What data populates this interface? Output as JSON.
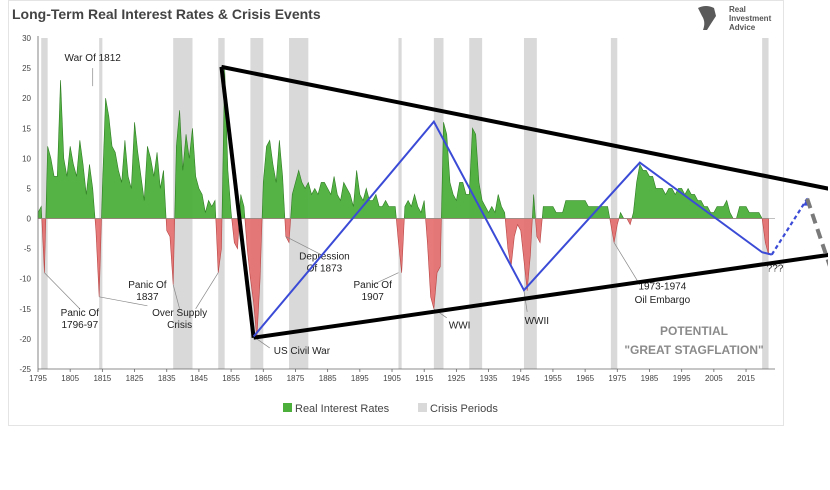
{
  "logo": {
    "line1": "Real",
    "line2": "Investment",
    "line3": "Advice"
  },
  "chart_data": {
    "type": "area",
    "title": "Long-Term Real Interest Rates & Crisis Events",
    "xlabel": "",
    "ylabel": "",
    "xlim": [
      1795,
      2024
    ],
    "ylim": [
      -25,
      30
    ],
    "grid": false,
    "legend_position": "bottom-center",
    "x_ticks": [
      "1795",
      "1805",
      "1815",
      "1825",
      "1835",
      "1845",
      "1855",
      "1865",
      "1875",
      "1885",
      "1895",
      "1905",
      "1915",
      "1925",
      "1935",
      "1945",
      "1955",
      "1965",
      "1975",
      "1985",
      "1995",
      "2005",
      "2015"
    ],
    "y_ticks": [
      "30",
      "25",
      "20",
      "15",
      "10",
      "5",
      "0",
      "-5",
      "-10",
      "-15",
      "-20",
      "-25"
    ],
    "series": [
      {
        "name": "Real Interest Rates",
        "positive_color": "#4caf3c",
        "negative_color": "#e36a6a",
        "points": [
          [
            1795,
            1
          ],
          [
            1796,
            2
          ],
          [
            1797,
            -9
          ],
          [
            1798,
            12
          ],
          [
            1799,
            10
          ],
          [
            1800,
            7
          ],
          [
            1801,
            7
          ],
          [
            1802,
            23
          ],
          [
            1803,
            10
          ],
          [
            1804,
            7
          ],
          [
            1805,
            12
          ],
          [
            1806,
            9
          ],
          [
            1807,
            7
          ],
          [
            1808,
            13
          ],
          [
            1809,
            9
          ],
          [
            1810,
            4
          ],
          [
            1811,
            9
          ],
          [
            1812,
            5
          ],
          [
            1813,
            -2
          ],
          [
            1814,
            -13
          ],
          [
            1815,
            5
          ],
          [
            1816,
            20
          ],
          [
            1817,
            17
          ],
          [
            1818,
            12
          ],
          [
            1819,
            11
          ],
          [
            1820,
            8
          ],
          [
            1821,
            6
          ],
          [
            1822,
            13
          ],
          [
            1823,
            7
          ],
          [
            1824,
            5
          ],
          [
            1825,
            16
          ],
          [
            1826,
            11
          ],
          [
            1827,
            7
          ],
          [
            1828,
            3
          ],
          [
            1829,
            12
          ],
          [
            1830,
            10
          ],
          [
            1831,
            7
          ],
          [
            1832,
            11
          ],
          [
            1833,
            5
          ],
          [
            1834,
            8
          ],
          [
            1835,
            -2
          ],
          [
            1836,
            -3
          ],
          [
            1837,
            -11
          ],
          [
            1838,
            12
          ],
          [
            1839,
            18
          ],
          [
            1840,
            8
          ],
          [
            1841,
            14
          ],
          [
            1842,
            10
          ],
          [
            1843,
            15
          ],
          [
            1844,
            7
          ],
          [
            1845,
            5
          ],
          [
            1846,
            4
          ],
          [
            1847,
            1
          ],
          [
            1848,
            3
          ],
          [
            1849,
            2
          ],
          [
            1850,
            3
          ],
          [
            1851,
            -9
          ],
          [
            1852,
            -5
          ],
          [
            1853,
            25
          ],
          [
            1854,
            8
          ],
          [
            1855,
            1
          ],
          [
            1856,
            -4
          ],
          [
            1857,
            -5
          ],
          [
            1858,
            4
          ],
          [
            1859,
            2
          ],
          [
            1860,
            -5
          ],
          [
            1861,
            -10
          ],
          [
            1862,
            -14
          ],
          [
            1863,
            -20
          ],
          [
            1864,
            -10
          ],
          [
            1865,
            6
          ],
          [
            1866,
            12
          ],
          [
            1867,
            13
          ],
          [
            1868,
            9
          ],
          [
            1869,
            6
          ],
          [
            1870,
            13
          ],
          [
            1871,
            7
          ],
          [
            1872,
            -3
          ],
          [
            1873,
            -4
          ],
          [
            1874,
            4
          ],
          [
            1875,
            6
          ],
          [
            1876,
            8
          ],
          [
            1877,
            6
          ],
          [
            1878,
            5
          ],
          [
            1879,
            6
          ],
          [
            1880,
            4
          ],
          [
            1881,
            5
          ],
          [
            1882,
            4
          ],
          [
            1883,
            6
          ],
          [
            1884,
            6
          ],
          [
            1885,
            5
          ],
          [
            1886,
            4
          ],
          [
            1887,
            7
          ],
          [
            1888,
            4
          ],
          [
            1889,
            3
          ],
          [
            1890,
            6
          ],
          [
            1891,
            5
          ],
          [
            1892,
            4
          ],
          [
            1893,
            2
          ],
          [
            1894,
            8
          ],
          [
            1895,
            4
          ],
          [
            1896,
            3
          ],
          [
            1897,
            5
          ],
          [
            1898,
            3
          ],
          [
            1899,
            3
          ],
          [
            1900,
            4
          ],
          [
            1901,
            2
          ],
          [
            1902,
            2
          ],
          [
            1903,
            3
          ],
          [
            1904,
            2
          ],
          [
            1905,
            2
          ],
          [
            1906,
            2
          ],
          [
            1907,
            -4
          ],
          [
            1908,
            -9
          ],
          [
            1909,
            2
          ],
          [
            1910,
            3
          ],
          [
            1911,
            2
          ],
          [
            1912,
            4
          ],
          [
            1913,
            2
          ],
          [
            1914,
            1
          ],
          [
            1915,
            3
          ],
          [
            1916,
            -4
          ],
          [
            1917,
            -13
          ],
          [
            1918,
            -15
          ],
          [
            1919,
            -9
          ],
          [
            1920,
            -8
          ],
          [
            1921,
            16
          ],
          [
            1922,
            14
          ],
          [
            1923,
            6
          ],
          [
            1924,
            4
          ],
          [
            1925,
            3
          ],
          [
            1926,
            6
          ],
          [
            1927,
            6
          ],
          [
            1928,
            4
          ],
          [
            1929,
            4
          ],
          [
            1930,
            15
          ],
          [
            1931,
            14
          ],
          [
            1932,
            6
          ],
          [
            1933,
            3
          ],
          [
            1934,
            2
          ],
          [
            1935,
            1
          ],
          [
            1936,
            2
          ],
          [
            1937,
            1
          ],
          [
            1938,
            4
          ],
          [
            1939,
            2
          ],
          [
            1940,
            1
          ],
          [
            1941,
            -5
          ],
          [
            1942,
            -8
          ],
          [
            1943,
            -3
          ],
          [
            1944,
            -1
          ],
          [
            1945,
            -2
          ],
          [
            1946,
            -7
          ],
          [
            1947,
            -12
          ],
          [
            1948,
            -6
          ],
          [
            1949,
            4
          ],
          [
            1950,
            -3
          ],
          [
            1951,
            -4
          ],
          [
            1952,
            2
          ],
          [
            1953,
            2
          ],
          [
            1954,
            2
          ],
          [
            1955,
            2
          ],
          [
            1956,
            1
          ],
          [
            1957,
            1
          ],
          [
            1958,
            1
          ],
          [
            1959,
            3
          ],
          [
            1960,
            3
          ],
          [
            1961,
            3
          ],
          [
            1962,
            3
          ],
          [
            1963,
            3
          ],
          [
            1964,
            3
          ],
          [
            1965,
            3
          ],
          [
            1966,
            2
          ],
          [
            1967,
            2
          ],
          [
            1968,
            2
          ],
          [
            1969,
            2
          ],
          [
            1970,
            2
          ],
          [
            1971,
            2
          ],
          [
            1972,
            2
          ],
          [
            1973,
            -1
          ],
          [
            1974,
            -4
          ],
          [
            1975,
            -1
          ],
          [
            1976,
            1
          ],
          [
            1977,
            0
          ],
          [
            1978,
            0
          ],
          [
            1979,
            -1
          ],
          [
            1980,
            1
          ],
          [
            1981,
            6
          ],
          [
            1982,
            9
          ],
          [
            1983,
            8
          ],
          [
            1984,
            8
          ],
          [
            1985,
            7
          ],
          [
            1986,
            7
          ],
          [
            1987,
            5
          ],
          [
            1988,
            5
          ],
          [
            1989,
            5
          ],
          [
            1990,
            4
          ],
          [
            1991,
            5
          ],
          [
            1992,
            5
          ],
          [
            1993,
            4
          ],
          [
            1994,
            5
          ],
          [
            1995,
            5
          ],
          [
            1996,
            4
          ],
          [
            1997,
            5
          ],
          [
            1998,
            4
          ],
          [
            1999,
            4
          ],
          [
            2000,
            3
          ],
          [
            2001,
            3
          ],
          [
            2002,
            2
          ],
          [
            2003,
            2
          ],
          [
            2004,
            1
          ],
          [
            2005,
            1
          ],
          [
            2006,
            2
          ],
          [
            2007,
            2
          ],
          [
            2008,
            2
          ],
          [
            2009,
            3
          ],
          [
            2010,
            1
          ],
          [
            2011,
            0
          ],
          [
            2012,
            0
          ],
          [
            2013,
            2
          ],
          [
            2014,
            2
          ],
          [
            2015,
            2
          ],
          [
            2016,
            1
          ],
          [
            2017,
            1
          ],
          [
            2018,
            1
          ],
          [
            2019,
            1
          ],
          [
            2020,
            0
          ],
          [
            2021,
            -4
          ],
          [
            2022,
            -6
          ]
        ]
      }
    ],
    "crisis_periods": {
      "name": "Crisis Periods",
      "color": "#d9d9d9",
      "ranges": [
        [
          1796,
          1798
        ],
        [
          1814,
          1815
        ],
        [
          1837,
          1843
        ],
        [
          1851,
          1853
        ],
        [
          1861,
          1865
        ],
        [
          1873,
          1879
        ],
        [
          1907,
          1908
        ],
        [
          1918,
          1921
        ],
        [
          1929,
          1933
        ],
        [
          1946,
          1950
        ],
        [
          1973,
          1975
        ],
        [
          2020,
          2022
        ]
      ]
    },
    "annotations": [
      {
        "text": "War Of 1812",
        "x": 1812,
        "y": 26.2
      },
      {
        "text": "Panic Of",
        "x": 1808,
        "y": -16.2
      },
      {
        "text": "1796-97",
        "x": 1808,
        "y": -18.2
      },
      {
        "text": "Panic Of",
        "x": 1829,
        "y": -11.5
      },
      {
        "text": "1837",
        "x": 1829,
        "y": -13.5
      },
      {
        "text": "Over Supply",
        "x": 1839,
        "y": -16.2
      },
      {
        "text": "Crisis",
        "x": 1839,
        "y": -18.2
      },
      {
        "text": "Depression",
        "x": 1884,
        "y": -6.8
      },
      {
        "text": "Of 1873",
        "x": 1884,
        "y": -8.8
      },
      {
        "text": "Panic Of",
        "x": 1899,
        "y": -11.5
      },
      {
        "text": "1907",
        "x": 1899,
        "y": -13.5
      },
      {
        "text": "US Civil War",
        "x": 1877,
        "y": -22.5
      },
      {
        "text": "WWI",
        "x": 1926,
        "y": -18.3
      },
      {
        "text": "WWII",
        "x": 1950,
        "y": -17.5
      },
      {
        "text": "1973-1974",
        "x": 1989,
        "y": -11.8
      },
      {
        "text": "Oil Embargo",
        "x": 1989,
        "y": -14.0
      },
      {
        "text": "???",
        "x": 2024,
        "y": -8.8
      }
    ],
    "overlay": {
      "upper_trendline": [
        [
          1852,
          25.2
        ],
        [
          2058,
          3.1
        ]
      ],
      "lower_trendline": [
        [
          1862,
          -19.8
        ],
        [
          2058,
          -4.7
        ]
      ],
      "left_edge": [
        [
          1852,
          25.2
        ],
        [
          1862,
          -19.8
        ]
      ],
      "zigzag": [
        [
          1862,
          -19.6
        ],
        [
          1918,
          16.1
        ],
        [
          1946,
          -11.9
        ],
        [
          1982,
          9.3
        ],
        [
          2020,
          -5.6
        ],
        [
          2023,
          -6.0
        ]
      ],
      "arrow_up": [
        [
          2023,
          -6.0
        ],
        [
          2034,
          3.3
        ]
      ],
      "arrow_down": [
        [
          2034,
          3.3
        ],
        [
          2060,
          -38.0
        ]
      ],
      "commentary": [
        "POTENTIAL",
        "\"GREAT STAGFLATION\""
      ]
    }
  }
}
